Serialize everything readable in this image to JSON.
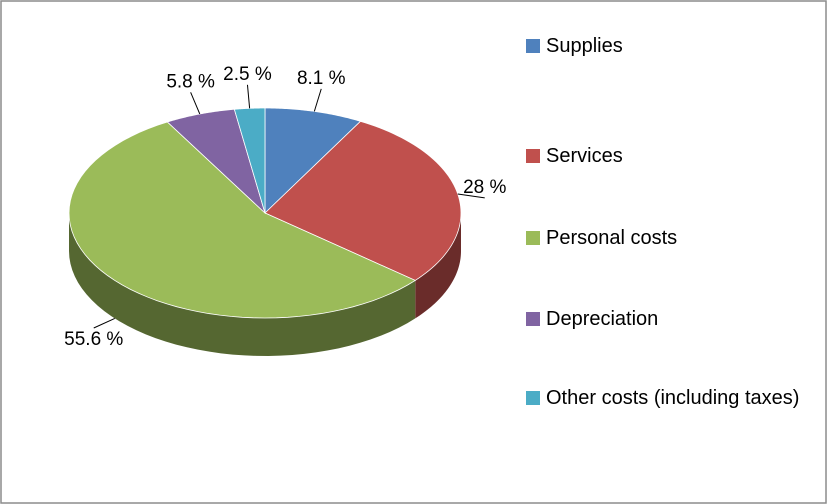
{
  "chart_data": {
    "type": "pie3d",
    "categories": [
      "Supplies",
      "Services",
      "Personal costs",
      "Depreciation",
      "Other costs (including taxes)"
    ],
    "values": [
      8.1,
      28,
      55.6,
      5.8,
      2.5
    ],
    "value_labels": [
      "8.1 %",
      "28 %",
      "55.6 %",
      "5.8 %",
      "2.5 %"
    ],
    "colors": [
      "#4f81bd",
      "#c0504d",
      "#9bbb59",
      "#8064a2",
      "#4bacc6"
    ],
    "legend": "right"
  }
}
